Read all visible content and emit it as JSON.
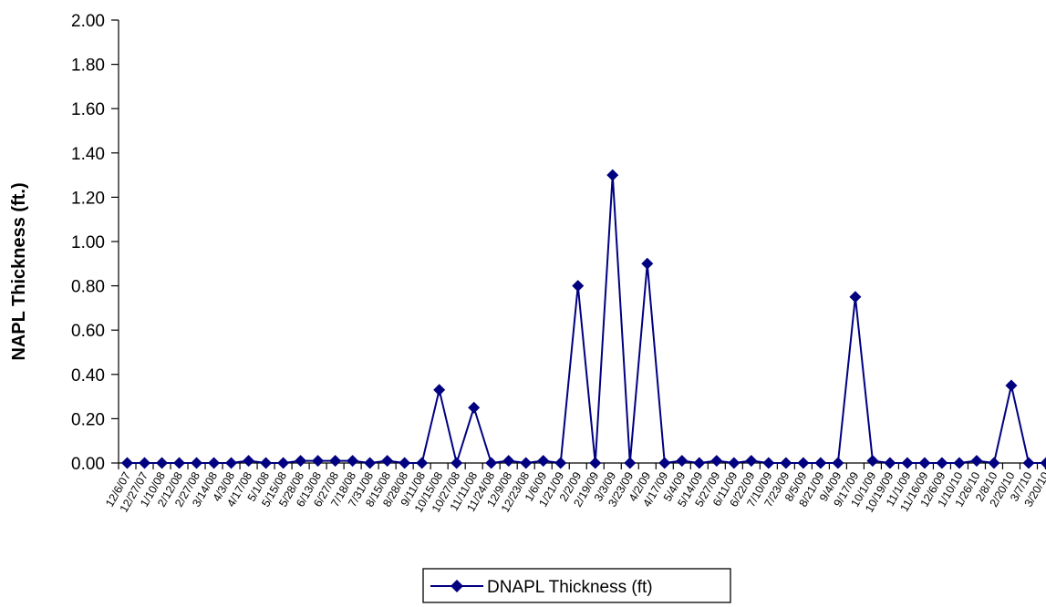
{
  "chart_data": {
    "type": "line",
    "xlabel": "",
    "ylabel": "NAPL Thickness (ft.)",
    "ylim": [
      0,
      2.0
    ],
    "ytick_labels": [
      "0.00",
      "0.20",
      "0.40",
      "0.60",
      "0.80",
      "1.00",
      "1.20",
      "1.40",
      "1.60",
      "1.80",
      "2.00"
    ],
    "grid": false,
    "legend_position": "bottom-center",
    "categories": [
      "12/6/07",
      "12/27/07",
      "1/10/08",
      "2/12/08",
      "2/27/08",
      "3/14/08",
      "4/3/08",
      "4/17/08",
      "5/1/08",
      "5/15/08",
      "5/28/08",
      "6/13/08",
      "6/27/08",
      "7/18/08",
      "7/31/08",
      "8/15/08",
      "8/28/08",
      "9/11/08",
      "10/15/08",
      "10/27/08",
      "11/11/08",
      "11/24/08",
      "12/9/08",
      "12/23/08",
      "1/6/09",
      "1/21/09",
      "2/2/09",
      "2/19/09",
      "3/3/09",
      "3/23/09",
      "4/2/09",
      "4/17/09",
      "5/4/09",
      "5/14/09",
      "5/27/09",
      "6/11/09",
      "6/22/09",
      "7/10/09",
      "7/23/09",
      "8/5/09",
      "8/21/09",
      "9/4/09",
      "9/17/09",
      "10/1/09",
      "10/19/09",
      "11/1/09",
      "11/16/09",
      "12/6/09",
      "1/10/10",
      "1/26/10",
      "2/8/10",
      "2/20/10",
      "3/7/10",
      "3/20/10"
    ],
    "series": [
      {
        "name": "DNAPL Thickness (ft)",
        "color": "#000080",
        "marker": "diamond",
        "values": [
          0,
          0,
          0,
          0,
          0,
          0,
          0,
          0.01,
          0,
          0,
          0.01,
          0.01,
          0.01,
          0.01,
          0,
          0.01,
          0,
          0,
          0.33,
          0,
          0.25,
          0,
          0.01,
          0,
          0.01,
          0,
          0.8,
          0,
          1.3,
          0,
          0.9,
          0,
          0.01,
          0,
          0.01,
          0,
          0.01,
          0,
          0,
          0,
          0,
          0,
          0.75,
          0.01,
          0,
          0,
          0,
          0,
          0,
          0.01,
          0,
          0.35,
          0,
          0
        ]
      }
    ]
  }
}
